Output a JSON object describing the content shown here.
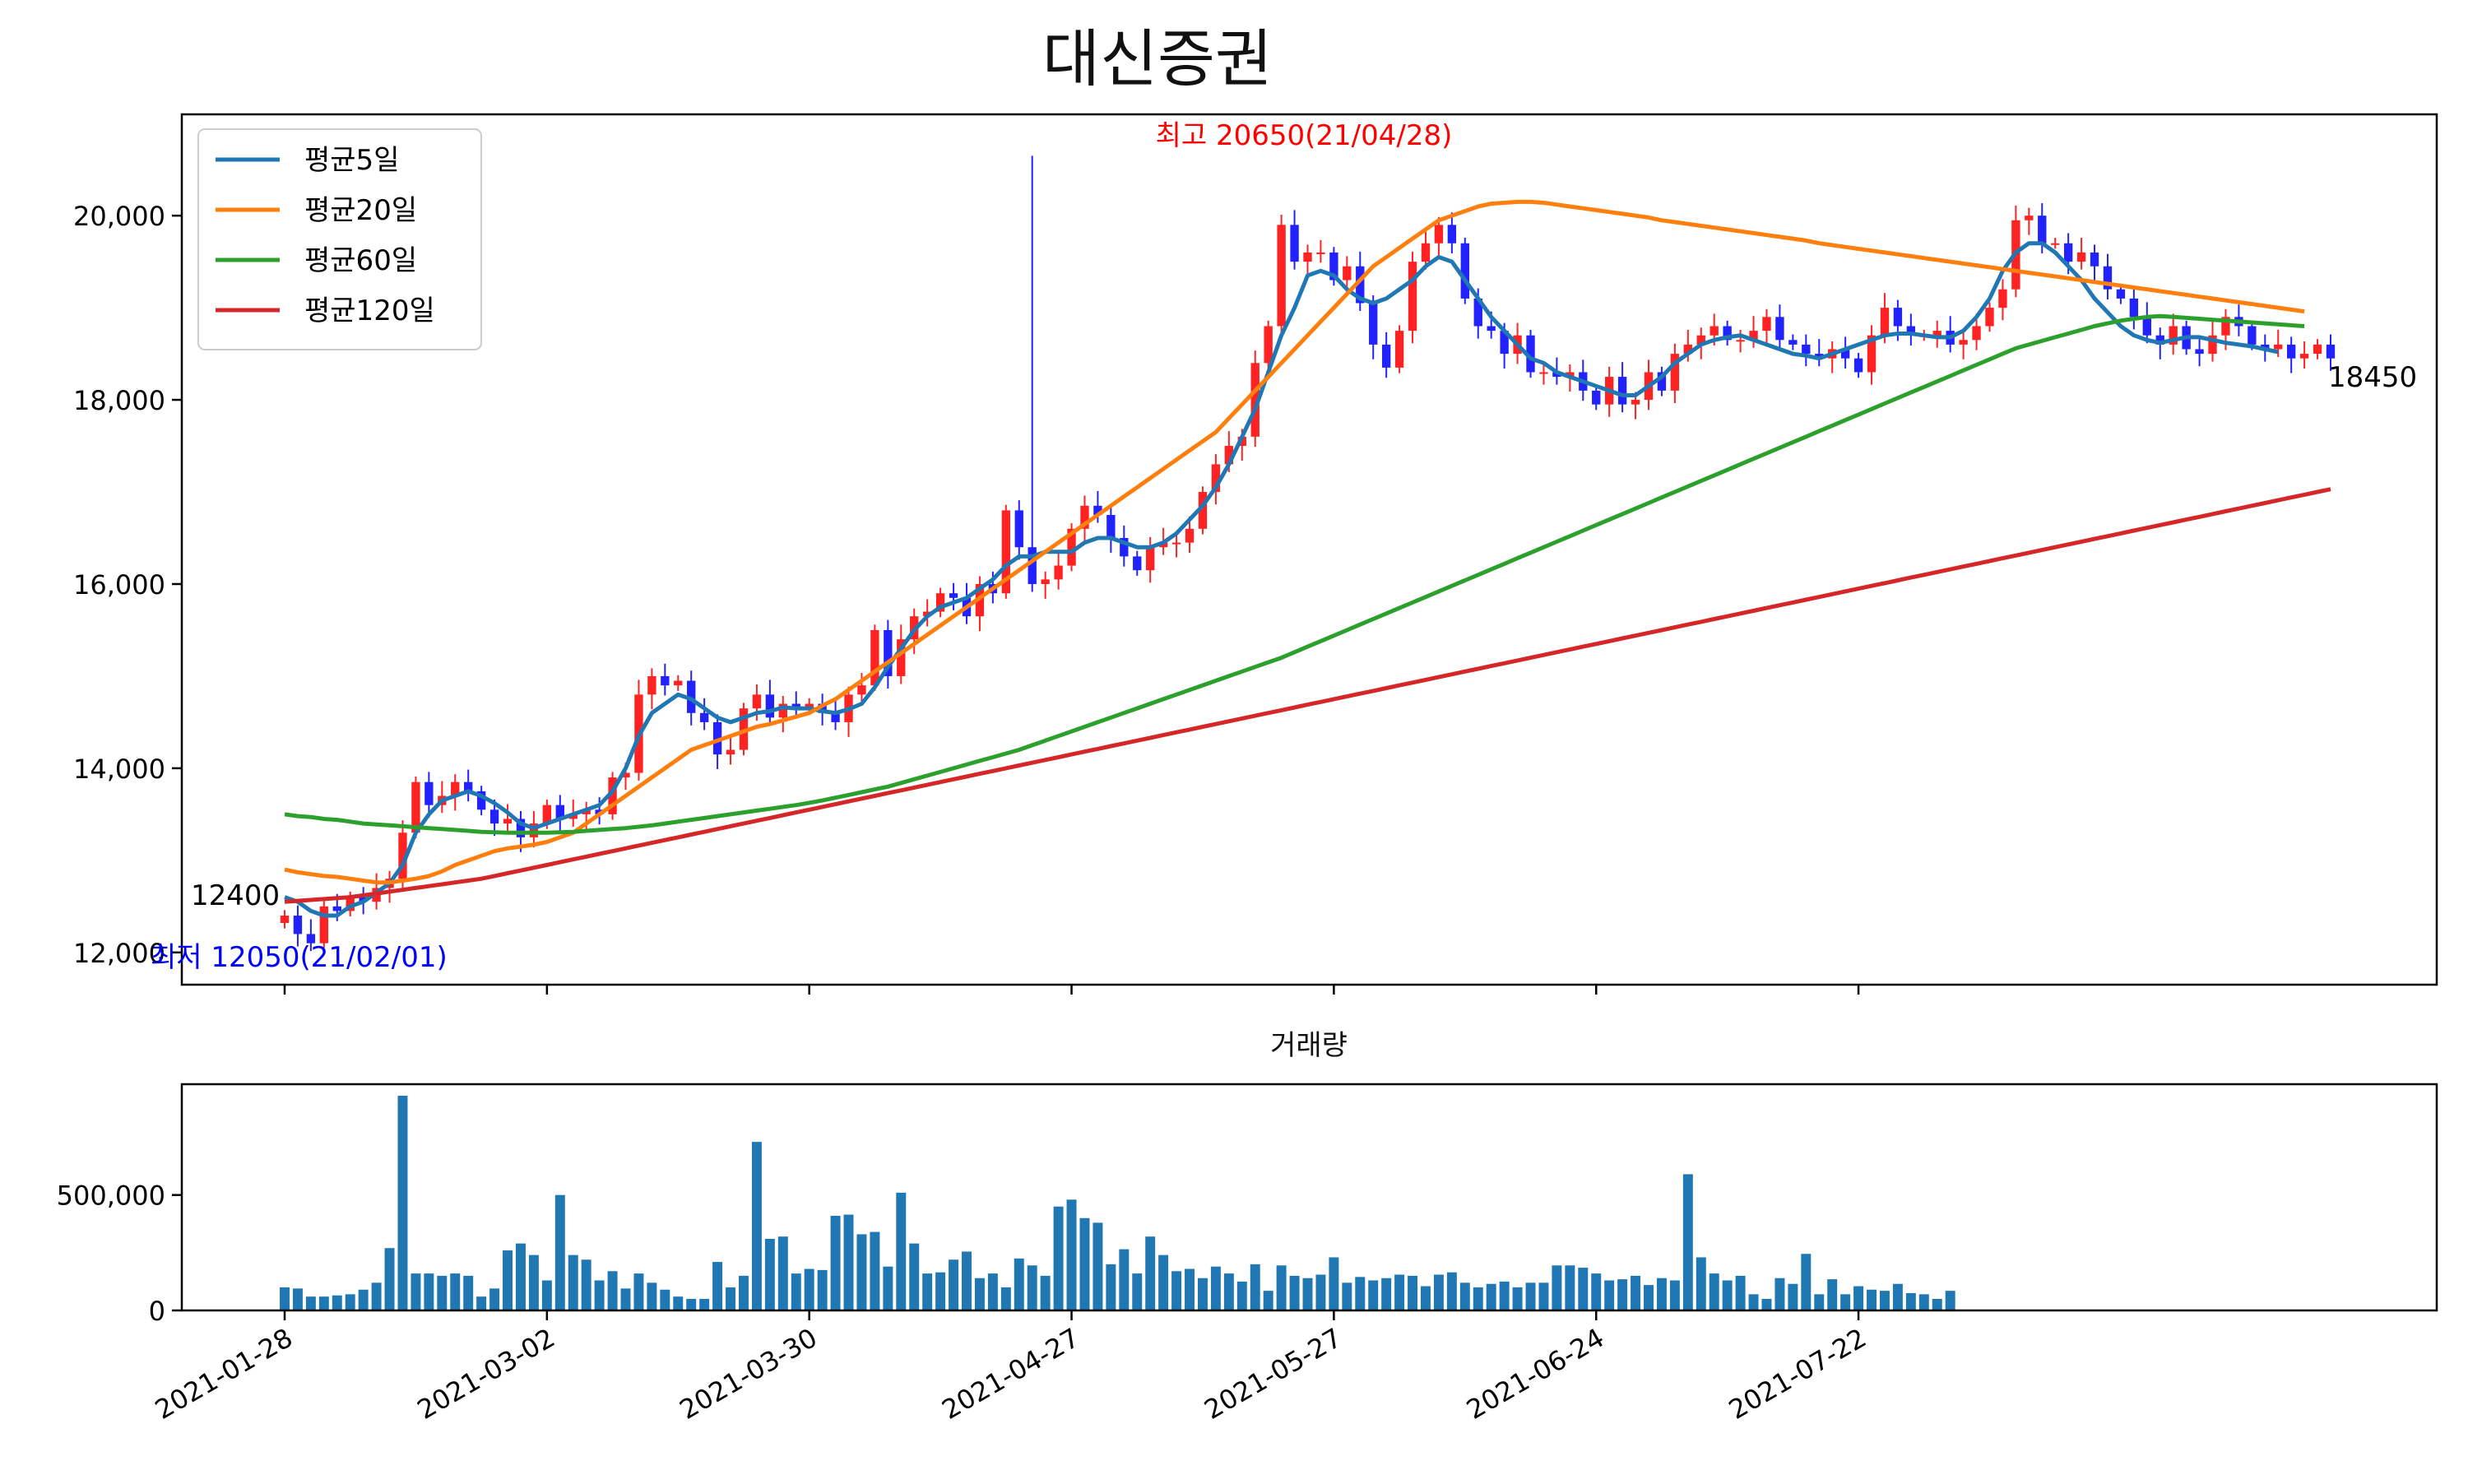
{
  "chart_data": [
    {
      "type": "candlestick",
      "title": "대신증권",
      "yticks": [
        "12,000",
        "14,000",
        "16,000",
        "18,000",
        "20,000"
      ],
      "ytick_values": [
        12000,
        14000,
        16000,
        18000,
        20000
      ],
      "ylim": [
        11650,
        21100
      ],
      "grid": false,
      "legend_position": "top-left",
      "legend": [
        "평균5일",
        "평균20일",
        "평균60일",
        "평균120일"
      ],
      "series_colors": [
        "#1f77b4",
        "#ff7f0e",
        "#2ca02c",
        "#d62728"
      ],
      "up_color": "#ff2222",
      "down_color": "#2222ff",
      "annotations": {
        "high": "최고 20650(21/04/28)",
        "low": "최저 12050(21/02/01)",
        "first_close": "12400",
        "last_close": "18450"
      },
      "ohlc_series": {
        "closes": [
          12400,
          12200,
          12100,
          12500,
          12450,
          12600,
          12550,
          12700,
          12800,
          13300,
          13850,
          13600,
          13700,
          13850,
          13750,
          13550,
          13400,
          13450,
          13250,
          13400,
          13600,
          13450,
          13500,
          13550,
          13500,
          13900,
          13950,
          14800,
          15000,
          14900,
          14950,
          14600,
          14500,
          14150,
          14200,
          14650,
          14800,
          14550,
          14700,
          14650,
          14700,
          14600,
          14500,
          14800,
          14900,
          15500,
          15000,
          15400,
          15650,
          15700,
          15900,
          15850,
          15650,
          16000,
          15900,
          16800,
          16400,
          16000,
          16050,
          16200,
          16600,
          16850,
          16750,
          16500,
          16300,
          16150,
          16400,
          16450,
          16450,
          16600,
          17000,
          17300,
          17500,
          17600,
          18400,
          18800,
          19900,
          19500,
          19600,
          19600,
          19300,
          19450,
          19050,
          18600,
          18350,
          18750,
          19500,
          19700,
          19900,
          19700,
          19100,
          18800,
          18750,
          18500,
          18700,
          18300,
          18300,
          18250,
          18300,
          18100,
          17950,
          18250,
          17950,
          18000,
          18300,
          18100,
          18500,
          18600,
          18700,
          18800,
          18650,
          18650,
          18750,
          18900,
          18650,
          18600,
          18500,
          18450,
          18550,
          18450,
          18300,
          18700,
          19000,
          18800,
          18700,
          18700,
          18750,
          18600,
          18650,
          18800,
          19000,
          19200,
          19950,
          20000,
          19700,
          19700,
          19500,
          19600,
          19450,
          19200,
          19100,
          18900,
          18700,
          18600,
          18800,
          18550,
          18500,
          18700,
          18900,
          18800,
          18600,
          18550,
          18600,
          18450,
          18500,
          18600,
          18450
        ],
        "high": 20650,
        "low": 12050
      },
      "ma_series": {
        "ma5": [
          12600,
          12550,
          12450,
          12400,
          12400,
          12500,
          12550,
          12650,
          12750,
          12950,
          13300,
          13500,
          13650,
          13700,
          13750,
          13700,
          13620,
          13520,
          13400,
          13350,
          13400,
          13450,
          13500,
          13550,
          13600,
          13750,
          14000,
          14350,
          14600,
          14700,
          14800,
          14750,
          14650,
          14550,
          14500,
          14550,
          14600,
          14620,
          14660,
          14650,
          14650,
          14620,
          14600,
          14640,
          14700,
          14880,
          15100,
          15300,
          15500,
          15650,
          15750,
          15800,
          15850,
          15950,
          16050,
          16200,
          16300,
          16300,
          16350,
          16350,
          16350,
          16450,
          16500,
          16500,
          16450,
          16400,
          16400,
          16450,
          16550,
          16700,
          16850,
          17050,
          17300,
          17600,
          17900,
          18300,
          18700,
          19000,
          19350,
          19400,
          19350,
          19200,
          19100,
          19050,
          19100,
          19200,
          19300,
          19450,
          19550,
          19500,
          19300,
          19100,
          18900,
          18750,
          18600,
          18450,
          18400,
          18300,
          18250,
          18200,
          18150,
          18100,
          18050,
          18050,
          18150,
          18250,
          18400,
          18500,
          18600,
          18650,
          18680,
          18700,
          18650,
          18600,
          18550,
          18500,
          18480,
          18450,
          18500,
          18550,
          18600,
          18650,
          18700,
          18720,
          18720,
          18700,
          18680,
          18680,
          18750,
          18900,
          19100,
          19400,
          19600,
          19700,
          19700,
          19600,
          19450,
          19300,
          19100,
          18950,
          18800,
          18700,
          18650,
          18620,
          18650,
          18680,
          18680,
          18650,
          18620,
          18600,
          18580,
          18550,
          18520
        ],
        "ma20": [
          12900,
          12870,
          12850,
          12830,
          12820,
          12800,
          12780,
          12760,
          12760,
          12780,
          12800,
          12830,
          12880,
          12950,
          13000,
          13050,
          13100,
          13130,
          13150,
          13170,
          13200,
          13250,
          13300,
          13400,
          13500,
          13600,
          13700,
          13800,
          13900,
          14000,
          14100,
          14200,
          14250,
          14300,
          14350,
          14400,
          14450,
          14480,
          14520,
          14560,
          14600,
          14680,
          14750,
          14850,
          14950,
          15050,
          15150,
          15250,
          15350,
          15450,
          15550,
          15650,
          15750,
          15850,
          15950,
          16050,
          16150,
          16250,
          16350,
          16450,
          16550,
          16650,
          16750,
          16850,
          16950,
          17050,
          17150,
          17250,
          17350,
          17450,
          17550,
          17650,
          17800,
          17950,
          18100,
          18250,
          18400,
          18550,
          18700,
          18850,
          19000,
          19150,
          19300,
          19450,
          19550,
          19650,
          19750,
          19850,
          19950,
          20000,
          20050,
          20100,
          20130,
          20140,
          20150,
          20150,
          20140,
          20120,
          20100,
          20080,
          20060,
          20040,
          20020,
          20000,
          19980,
          19950,
          19930,
          19910,
          19890,
          19870,
          19850,
          19830,
          19810,
          19790,
          19770,
          19750,
          19730,
          19700,
          19680,
          19660,
          19640,
          19620,
          19600,
          19580,
          19560,
          19540,
          19520,
          19500,
          19480,
          19460,
          19440,
          19420,
          19400,
          19380,
          19360,
          19340,
          19320,
          19300,
          19280,
          19260,
          19240,
          19220,
          19200,
          19180,
          19160,
          19140,
          19120,
          19100,
          19080,
          19060,
          19040,
          19020,
          19000,
          18980,
          18960
        ],
        "ma60": [
          13500,
          13480,
          13470,
          13450,
          13440,
          13420,
          13400,
          13390,
          13380,
          13370,
          13360,
          13350,
          13340,
          13330,
          13320,
          13310,
          13305,
          13300,
          13300,
          13300,
          13300,
          13305,
          13310,
          13320,
          13330,
          13340,
          13350,
          13365,
          13380,
          13400,
          13420,
          13440,
          13460,
          13480,
          13500,
          13520,
          13540,
          13560,
          13580,
          13600,
          13625,
          13650,
          13680,
          13710,
          13740,
          13770,
          13800,
          13840,
          13880,
          13920,
          13960,
          14000,
          14040,
          14080,
          14120,
          14160,
          14200,
          14250,
          14300,
          14350,
          14400,
          14450,
          14500,
          14550,
          14600,
          14650,
          14700,
          14750,
          14800,
          14850,
          14900,
          14950,
          15000,
          15050,
          15100,
          15150,
          15200,
          15260,
          15320,
          15380,
          15440,
          15500,
          15560,
          15620,
          15680,
          15740,
          15800,
          15860,
          15920,
          15980,
          16040,
          16100,
          16160,
          16220,
          16280,
          16340,
          16400,
          16460,
          16520,
          16580,
          16640,
          16700,
          16760,
          16820,
          16880,
          16940,
          17000,
          17060,
          17120,
          17180,
          17240,
          17300,
          17360,
          17420,
          17480,
          17540,
          17600,
          17660,
          17720,
          17780,
          17840,
          17900,
          17960,
          18020,
          18080,
          18140,
          18200,
          18260,
          18320,
          18380,
          18440,
          18500,
          18560,
          18600,
          18640,
          18680,
          18720,
          18760,
          18800,
          18830,
          18860,
          18880,
          18900,
          18910,
          18900,
          18890,
          18880,
          18870,
          18860,
          18850,
          18840,
          18830,
          18820,
          18810,
          18800
        ],
        "ma120": [
          12550,
          12560,
          12570,
          12580,
          12590,
          12600,
          12620,
          12640,
          12660,
          12680,
          12700,
          12720,
          12740,
          12760,
          12780,
          12800,
          12830,
          12860,
          12890,
          12920,
          12950,
          12980,
          13010,
          13040,
          13070,
          13100,
          13130,
          13160,
          13190,
          13220,
          13250,
          13280,
          13310,
          13340,
          13370,
          13400,
          13430,
          13460,
          13490,
          13520,
          13550,
          13580,
          13610,
          13640,
          13670,
          13700,
          13730,
          13760,
          13790,
          13820,
          13850,
          13880,
          13910,
          13940,
          13970,
          14000,
          14030,
          14060,
          14090,
          14120,
          14150,
          14180,
          14210,
          14240,
          14270,
          14300,
          14330,
          14360,
          14390,
          14420,
          14450,
          14480,
          14510,
          14540,
          14570,
          14600,
          14630,
          14660,
          14690,
          14720,
          14750,
          14780,
          14810,
          14840,
          14870,
          14900,
          14930,
          14960,
          14990,
          15020,
          15050,
          15080,
          15110,
          15140,
          15170,
          15200,
          15230,
          15260,
          15290,
          15320,
          15350,
          15380,
          15410,
          15440,
          15470,
          15500,
          15530,
          15560,
          15590,
          15620,
          15650,
          15680,
          15710,
          15740,
          15770,
          15800,
          15830,
          15860,
          15890,
          15920,
          15950,
          15980,
          16010,
          16040,
          16070,
          16100,
          16130,
          16160,
          16190,
          16220,
          16250,
          16280,
          16310,
          16340,
          16370,
          16400,
          16430,
          16460,
          16490,
          16520,
          16550,
          16580,
          16610,
          16640,
          16670,
          16700,
          16730,
          16760,
          16790,
          16820,
          16850,
          16880,
          16910,
          16940,
          16970,
          17000,
          17030
        ]
      }
    },
    {
      "type": "bar",
      "title": "거래량",
      "yticks": [
        "0",
        "500,000"
      ],
      "ytick_values": [
        0,
        500000
      ],
      "ylim": [
        0,
        980000
      ],
      "grid": false,
      "bar_color": "#1f77b4",
      "xtick_labels": [
        "2021-01-28",
        "2021-03-02",
        "2021-03-30",
        "2021-04-27",
        "2021-05-27",
        "2021-06-24",
        "2021-07-22"
      ],
      "xtick_indices": [
        0,
        20,
        40,
        60,
        80,
        100,
        120
      ],
      "values": [
        100000,
        95000,
        60000,
        60000,
        65000,
        70000,
        90000,
        120000,
        270000,
        930000,
        160000,
        160000,
        150000,
        160000,
        150000,
        60000,
        95000,
        260000,
        290000,
        240000,
        130000,
        500000,
        240000,
        220000,
        130000,
        170000,
        95000,
        160000,
        120000,
        90000,
        60000,
        50000,
        50000,
        210000,
        100000,
        150000,
        730000,
        310000,
        320000,
        160000,
        180000,
        175000,
        410000,
        415000,
        330000,
        340000,
        190000,
        510000,
        290000,
        160000,
        165000,
        220000,
        255000,
        140000,
        160000,
        100000,
        225000,
        195000,
        150000,
        450000,
        480000,
        400000,
        380000,
        200000,
        265000,
        160000,
        320000,
        240000,
        170000,
        180000,
        140000,
        190000,
        160000,
        125000,
        200000,
        85000,
        195000,
        150000,
        140000,
        155000,
        230000,
        120000,
        145000,
        130000,
        140000,
        155000,
        150000,
        105000,
        155000,
        165000,
        120000,
        100000,
        115000,
        125000,
        100000,
        120000,
        120000,
        195000,
        195000,
        185000,
        160000,
        130000,
        135000,
        150000,
        110000,
        140000,
        130000,
        590000,
        230000,
        160000,
        130000,
        150000,
        70000,
        50000,
        140000,
        115000,
        245000,
        70000,
        135000,
        70000,
        105000,
        90000,
        85000,
        115000,
        75000,
        70000,
        50000,
        85000
      ]
    }
  ]
}
